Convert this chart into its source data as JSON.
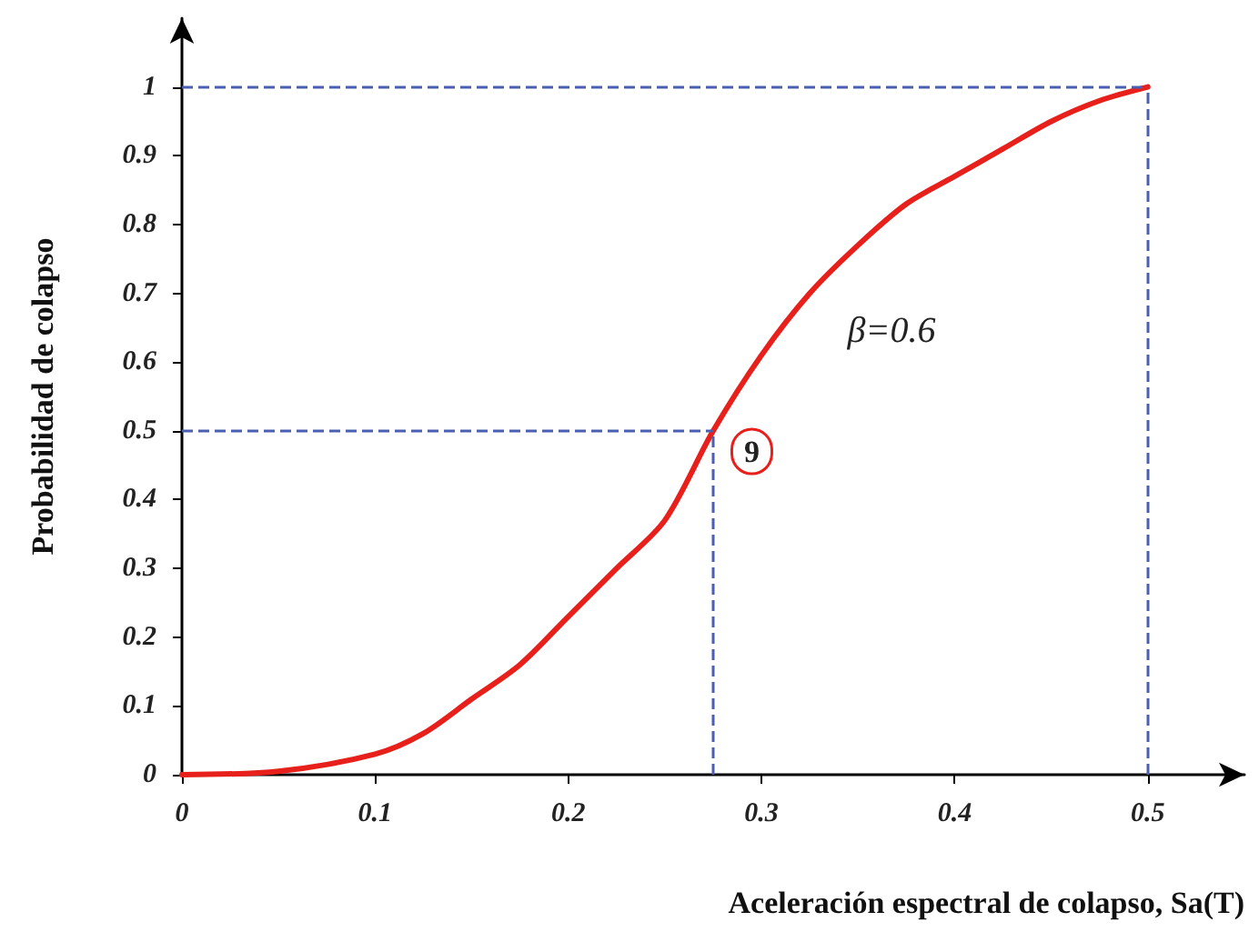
{
  "chart_data": {
    "type": "line",
    "xlabel": "Aceleración espectral de colapso, Sa(T)",
    "ylabel": "Probabilidad de colapso",
    "x": [
      0,
      0.05,
      0.1,
      0.125,
      0.15,
      0.175,
      0.2,
      0.225,
      0.25,
      0.275,
      0.3,
      0.325,
      0.35,
      0.375,
      0.4,
      0.425,
      0.45,
      0.475,
      0.5
    ],
    "series": [
      {
        "color": "#e8201c",
        "values": [
          0,
          0.005,
          0.03,
          0.06,
          0.11,
          0.16,
          0.23,
          0.3,
          0.37,
          0.5,
          0.61,
          0.7,
          0.77,
          0.83,
          0.87,
          0.91,
          0.95,
          0.98,
          1
        ]
      }
    ],
    "xlim": [
      0,
      0.55
    ],
    "xticks": [
      0,
      0.1,
      0.2,
      0.3,
      0.4,
      0.5
    ],
    "ylim": [
      0,
      1.1
    ],
    "yticks": [
      0,
      0.1,
      0.2,
      0.3,
      0.4,
      0.5,
      0.6,
      0.7,
      0.8,
      0.9,
      1
    ],
    "ref_lines": [
      {
        "axis": "y",
        "value": 0.5,
        "color": "#4a5fb0",
        "line_style": "dashed"
      },
      {
        "axis": "x",
        "value": 0.275,
        "color": "#4a5fb0",
        "line_style": "dashed"
      },
      {
        "axis": "y",
        "value": 1,
        "color": "#4a5fb0",
        "line_style": "dashed"
      },
      {
        "axis": "x",
        "value": 0.5,
        "color": "#4a5fb0",
        "line_style": "dashed"
      }
    ],
    "annotations": [
      "β=0.6",
      {
        "text": "9",
        "x": 0.295,
        "y": 0.47
      }
    ],
    "grid": false,
    "marker": "none",
    "line_style": "solid"
  }
}
